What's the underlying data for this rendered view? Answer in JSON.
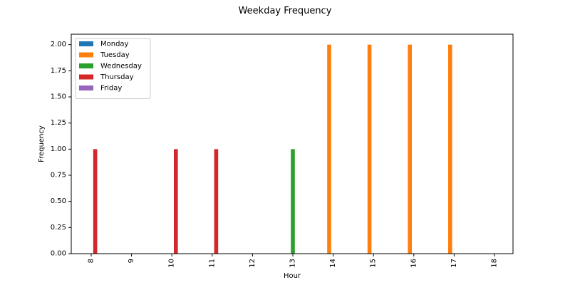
{
  "chart_data": {
    "type": "bar",
    "title": "Weekday Frequency",
    "xlabel": "Hour",
    "ylabel": "Frequency",
    "categories": [
      "8",
      "9",
      "10",
      "11",
      "12",
      "13",
      "14",
      "15",
      "16",
      "17",
      "18"
    ],
    "series": [
      {
        "name": "Monday",
        "color": "#1f77b4",
        "values": [
          0,
          0,
          0,
          0,
          0,
          0,
          0,
          0,
          0,
          0,
          0
        ]
      },
      {
        "name": "Tuesday",
        "color": "#ff7f0e",
        "values": [
          0,
          0,
          0,
          0,
          0,
          0,
          2,
          2,
          2,
          2,
          0
        ]
      },
      {
        "name": "Wednesday",
        "color": "#2ca02c",
        "values": [
          0,
          0,
          0,
          0,
          0,
          1,
          0,
          0,
          0,
          0,
          0
        ]
      },
      {
        "name": "Thursday",
        "color": "#d62728",
        "values": [
          1,
          0,
          1,
          1,
          0,
          0,
          0,
          0,
          0,
          0,
          0
        ]
      },
      {
        "name": "Friday",
        "color": "#9467bd",
        "values": [
          0,
          0,
          0,
          0,
          0,
          0,
          0,
          0,
          0,
          0,
          0
        ]
      }
    ],
    "ylim": [
      0,
      2.1
    ],
    "yticks": [
      "0.00",
      "0.25",
      "0.50",
      "0.75",
      "1.00",
      "1.25",
      "1.50",
      "1.75",
      "2.00"
    ],
    "grid": false,
    "legend_position": "top-left"
  }
}
